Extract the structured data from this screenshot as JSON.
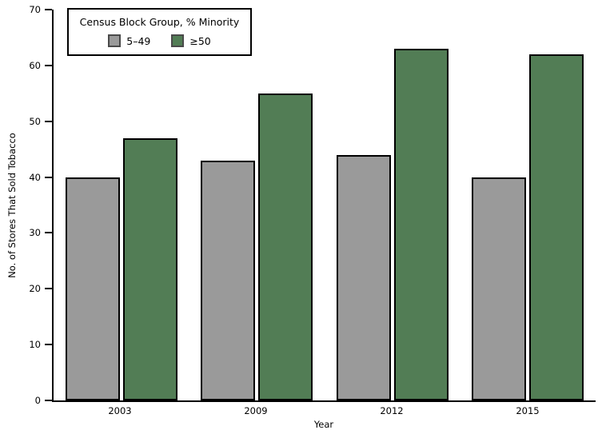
{
  "chart_data": {
    "type": "bar",
    "title": "",
    "categories": [
      "2003",
      "2009",
      "2012",
      "2015"
    ],
    "series": [
      {
        "name": "5–49",
        "color": "#9a9a9a",
        "values": [
          40,
          43,
          44,
          40
        ]
      },
      {
        "name": "≥50",
        "color": "#527d55",
        "values": [
          47,
          55,
          63,
          62
        ]
      }
    ],
    "xlabel": "Year",
    "ylabel": "No. of Stores That Sold Tobacco",
    "ylim": [
      0,
      70
    ],
    "yticks": [
      0,
      10,
      20,
      30,
      40,
      50,
      60,
      70
    ],
    "legend": {
      "title": "Census Block Group, % Minority",
      "position": "top-left-inside"
    },
    "axis_color": "#000000",
    "background": "#ffffff",
    "grid": false
  }
}
